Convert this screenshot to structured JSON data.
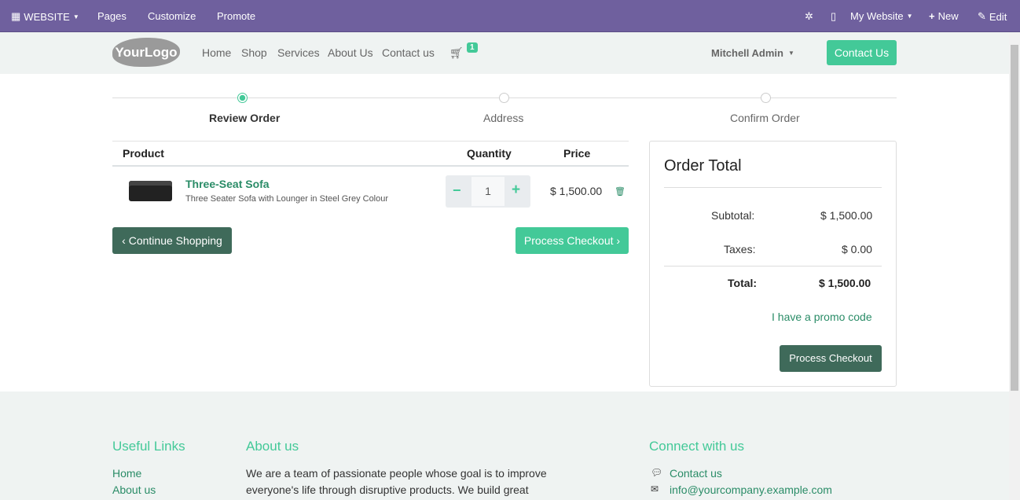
{
  "topbar": {
    "website": "WEBSITE",
    "pages": "Pages",
    "customize": "Customize",
    "promote": "Promote",
    "my_website": "My Website",
    "new": "New",
    "edit": "Edit"
  },
  "header": {
    "logo": "YourLogo",
    "nav": [
      "Home",
      "Shop",
      "Services",
      "About Us",
      "Contact us"
    ],
    "cart_count": "1",
    "user": "Mitchell Admin",
    "contact_button": "Contact Us"
  },
  "steps": [
    "Review Order",
    "Address",
    "Confirm Order"
  ],
  "cart": {
    "headers": {
      "product": "Product",
      "quantity": "Quantity",
      "price": "Price"
    },
    "items": [
      {
        "name": "Three-Seat Sofa",
        "description": "Three Seater Sofa with Lounger in Steel Grey Colour",
        "quantity": "1",
        "price": "$ 1,500.00"
      }
    ],
    "continue": "Continue Shopping",
    "checkout": "Process Checkout"
  },
  "summary": {
    "title": "Order Total",
    "subtotal_label": "Subtotal:",
    "subtotal": "$ 1,500.00",
    "taxes_label": "Taxes:",
    "taxes": "$ 0.00",
    "total_label": "Total:",
    "total": "$ 1,500.00",
    "promo": "I have a promo code",
    "checkout": "Process Checkout"
  },
  "footer": {
    "useful_links_title": "Useful Links",
    "links": [
      "Home",
      "About us"
    ],
    "about_title": "About us",
    "about_text": [
      "We are a team of passionate people whose goal is to improve",
      "everyone's life through disruptive products. We build great"
    ],
    "connect_title": "Connect with us",
    "contact": "Contact us",
    "email": "info@yourcompany.example.com"
  },
  "colors": {
    "topbar": "#6f609e",
    "accent": "#43c998",
    "dark_button": "#3f6a5a",
    "link": "#2a8c67"
  }
}
